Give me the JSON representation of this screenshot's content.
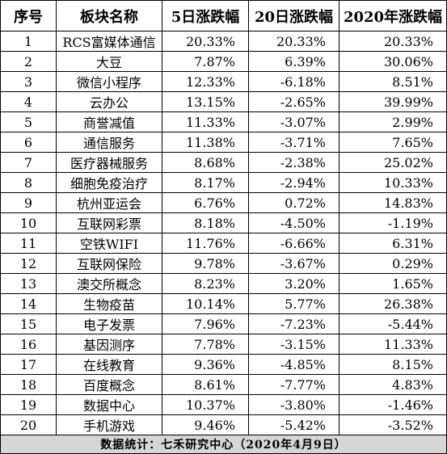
{
  "headers": [
    "序号",
    "板块名称",
    "5日涨跌幅",
    "20日涨跌幅",
    "2020年涨跌幅"
  ],
  "rows": [
    [
      "1",
      "RCS富媒体通信",
      "20.33%",
      "20.33%",
      "20.33%"
    ],
    [
      "2",
      "大豆",
      "7.87%",
      "6.39%",
      "30.06%"
    ],
    [
      "3",
      "微信小程序",
      "12.33%",
      "-6.18%",
      "8.51%"
    ],
    [
      "4",
      "云办公",
      "13.15%",
      "-2.65%",
      "39.99%"
    ],
    [
      "5",
      "商誉减值",
      "11.33%",
      "-3.07%",
      "2.99%"
    ],
    [
      "6",
      "通信服务",
      "11.38%",
      "-3.71%",
      "7.65%"
    ],
    [
      "7",
      "医疗器械服务",
      "8.68%",
      "-2.38%",
      "25.02%"
    ],
    [
      "8",
      "细胞免疫治疗",
      "8.17%",
      "-2.94%",
      "10.33%"
    ],
    [
      "9",
      "杭州亚运会",
      "6.76%",
      "0.72%",
      "14.83%"
    ],
    [
      "10",
      "互联网彩票",
      "8.18%",
      "-4.50%",
      "-1.19%"
    ],
    [
      "11",
      "空铁WIFI",
      "11.76%",
      "-6.66%",
      "6.31%"
    ],
    [
      "12",
      "互联网保险",
      "9.78%",
      "-3.67%",
      "0.29%"
    ],
    [
      "13",
      "澳交所概念",
      "8.23%",
      "3.20%",
      "1.65%"
    ],
    [
      "14",
      "生物疫苗",
      "10.14%",
      "5.77%",
      "26.38%"
    ],
    [
      "15",
      "电子发票",
      "7.96%",
      "-7.23%",
      "-5.44%"
    ],
    [
      "16",
      "基因测序",
      "7.78%",
      "-3.15%",
      "11.33%"
    ],
    [
      "17",
      "在线教育",
      "9.36%",
      "-4.85%",
      "8.15%"
    ],
    [
      "18",
      "百度概念",
      "8.61%",
      "-7.77%",
      "4.83%"
    ],
    [
      "19",
      "数据中心",
      "10.37%",
      "-3.80%",
      "-1.46%"
    ],
    [
      "20",
      "手机游戏",
      "9.46%",
      "-5.42%",
      "-3.52%"
    ]
  ],
  "footer": "数据统计：七禾研究中心（2020年4月9日）"
}
